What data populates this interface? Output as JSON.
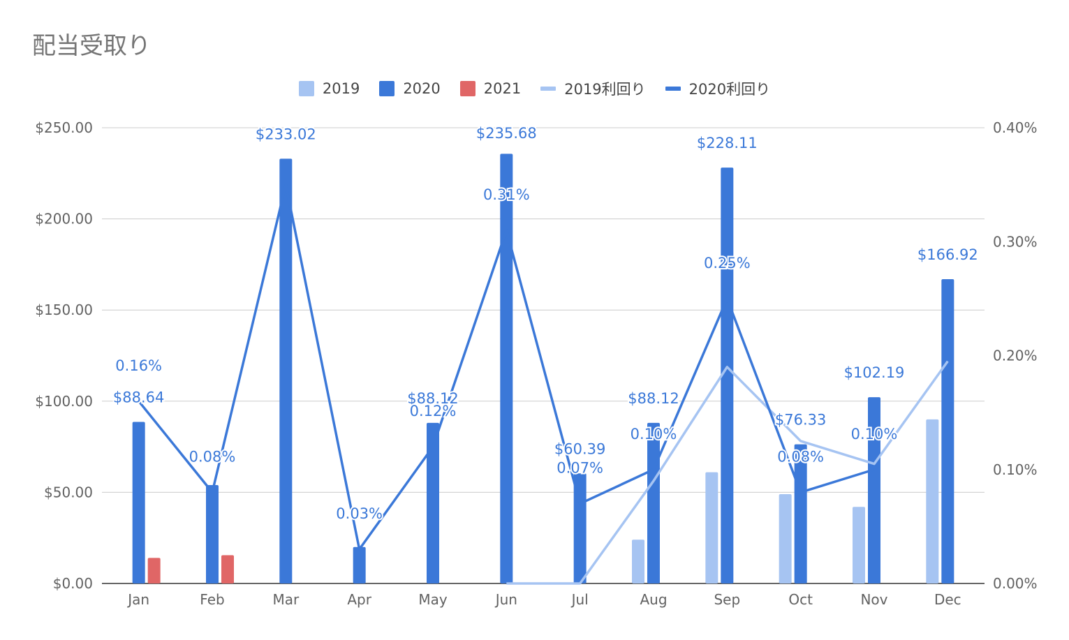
{
  "chart_data": {
    "type": "bar",
    "title": "配当受取り",
    "categories": [
      "Jan",
      "Feb",
      "Mar",
      "Apr",
      "May",
      "Jun",
      "Jul",
      "Aug",
      "Sep",
      "Oct",
      "Nov",
      "Dec"
    ],
    "y_ticks": [
      "$0.00",
      "$50.00",
      "$100.00",
      "$150.00",
      "$200.00",
      "$250.00"
    ],
    "y2_ticks": [
      "0.00%",
      "0.10%",
      "0.20%",
      "0.30%",
      "0.40%"
    ],
    "ylim": [
      0,
      250
    ],
    "y2lim": [
      0,
      0.4
    ],
    "grid": true,
    "legend_position": "top",
    "series": [
      {
        "name": "2019",
        "kind": "bar",
        "color": "#a6c4f2",
        "values": [
          null,
          null,
          null,
          null,
          null,
          null,
          null,
          24,
          61,
          49,
          42,
          90
        ]
      },
      {
        "name": "2020",
        "kind": "bar",
        "color": "#3b78d8",
        "values": [
          88.64,
          54,
          233.02,
          20,
          88.12,
          235.68,
          60.39,
          88.12,
          228.11,
          76.33,
          102.19,
          166.92
        ],
        "labels": [
          "$88.64",
          "",
          "$233.02",
          "",
          "$88.12",
          "$235.68",
          "$60.39",
          "$88.12",
          "$228.11",
          "$76.33",
          "$102.19",
          "$166.92"
        ]
      },
      {
        "name": "2021",
        "kind": "bar",
        "color": "#e06666",
        "values": [
          14,
          15.5,
          null,
          null,
          null,
          null,
          null,
          null,
          null,
          null,
          null,
          null
        ]
      },
      {
        "name": "2019利回り",
        "kind": "line",
        "axis": "right",
        "color": "#a6c4f2",
        "values": [
          null,
          null,
          null,
          null,
          null,
          0,
          0,
          0.09,
          0.19,
          0.125,
          0.105,
          0.195
        ]
      },
      {
        "name": "2020利回り",
        "kind": "line",
        "axis": "right",
        "color": "#3b78d8",
        "values": [
          0.16,
          0.08,
          0.35,
          0.03,
          0.12,
          0.31,
          0.07,
          0.1,
          0.25,
          0.08,
          0.1,
          null
        ],
        "labels": [
          "0.16%",
          "0.08%",
          "",
          "0.03%",
          "0.12%",
          "0.31%",
          "0.07%",
          "0.10%",
          "0.25%",
          "0.08%",
          "0.10%",
          ""
        ]
      }
    ]
  }
}
